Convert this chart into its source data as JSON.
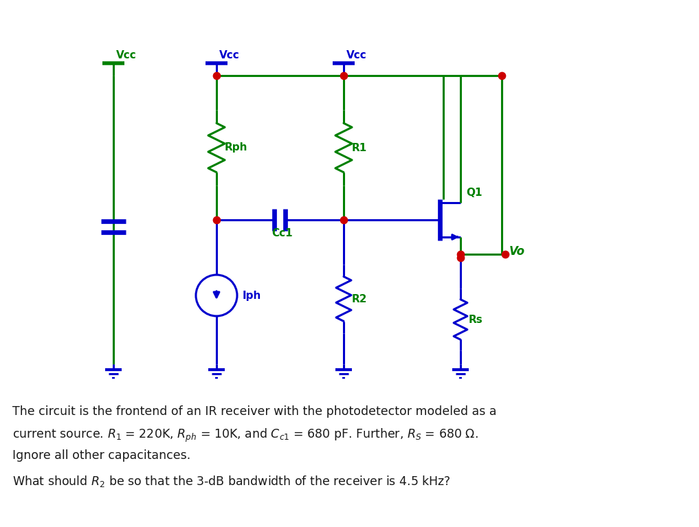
{
  "bg_color": "#ffffff",
  "gc": "#008000",
  "bc": "#0000CD",
  "rc": "#CC0000",
  "text1": "The circuit is the frontend of an IR receiver with the photodetector modeled as a",
  "text2": "current source. $R_1$ = 220K, $R_{ph}$ = 10K, and $C_{c1}$ = 680 pF. Further, $R_S$ = 680 Ω.",
  "text3": "Ignore all other capacitances.",
  "text4": "What should $R_2$ be so that the 3-dB bandwidth of the receiver is 4.5 kHz?",
  "figsize": [
    10.17,
    7.67
  ],
  "dpi": 100
}
